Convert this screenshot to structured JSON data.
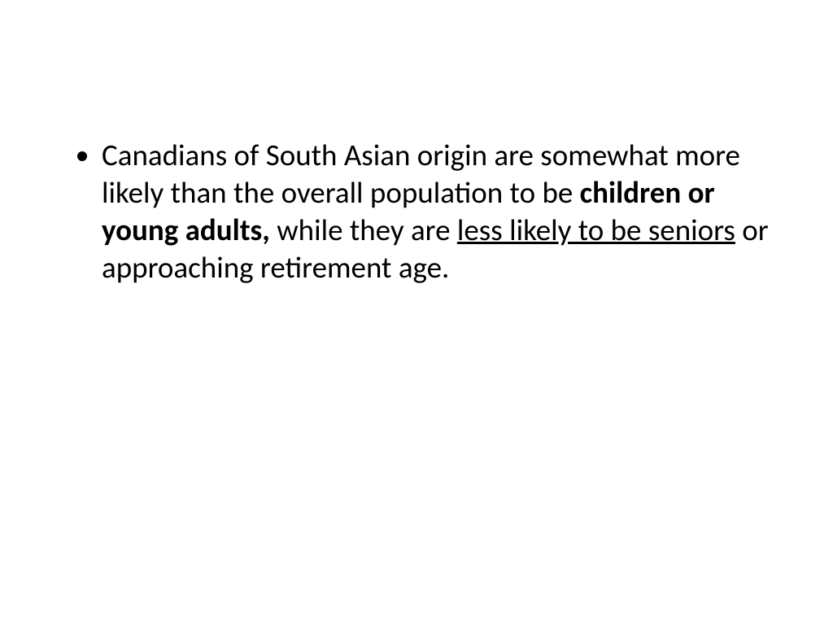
{
  "slide": {
    "background_color": "#ffffff",
    "text_color": "#000000",
    "font_family": "Calibri",
    "font_size_pt": 28,
    "bullet": {
      "segments": {
        "s1": "Canadians of South Asian origin are somewhat more likely than the overall population to be ",
        "s2_bold": "children or young adults,",
        "s3": " while they are ",
        "s4_underlined": "less likely to be seniors",
        "s5": " or approaching retirement age."
      },
      "styling": {
        "s2": "bold",
        "s4": "underline"
      }
    }
  }
}
